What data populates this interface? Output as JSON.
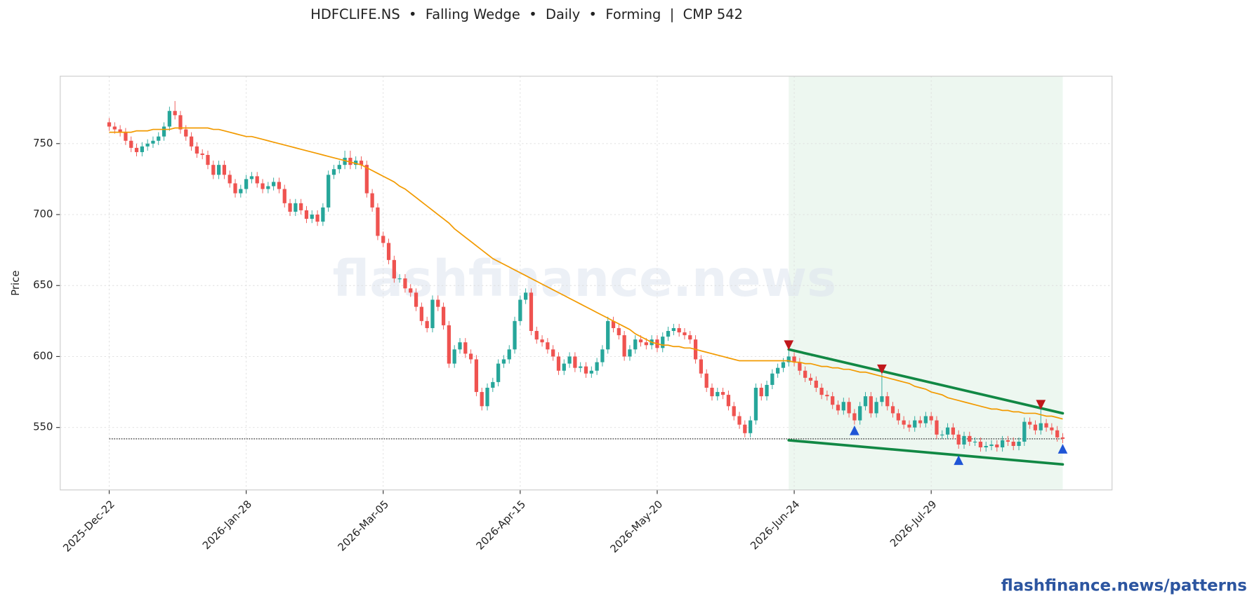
{
  "chart_data": {
    "type": "candlestick",
    "title": "HDFCLIFE.NS  •  Falling Wedge  •  Daily  •  Forming  |  CMP 542",
    "y_label": "Price",
    "watermark": "flashfinance.news",
    "footer": "flashfinance.news/patterns",
    "categories": [
      "2025-Dec-22",
      null,
      null,
      null,
      null,
      null,
      null,
      null,
      null,
      null,
      null,
      null,
      null,
      null,
      null,
      null,
      null,
      null,
      null,
      null,
      null,
      null,
      null,
      null,
      null,
      "2026-Jan-28",
      null,
      null,
      null,
      null,
      null,
      null,
      null,
      null,
      null,
      null,
      null,
      null,
      null,
      null,
      null,
      null,
      null,
      null,
      null,
      null,
      null,
      null,
      null,
      null,
      "2026-Mar-05",
      null,
      null,
      null,
      null,
      null,
      null,
      null,
      null,
      null,
      null,
      null,
      null,
      null,
      null,
      null,
      null,
      null,
      null,
      null,
      null,
      null,
      null,
      null,
      null,
      "2026-Apr-15",
      null,
      null,
      null,
      null,
      null,
      null,
      null,
      null,
      null,
      null,
      null,
      null,
      null,
      null,
      null,
      null,
      null,
      null,
      null,
      null,
      null,
      null,
      null,
      null,
      "2026-May-20",
      null,
      null,
      null,
      null,
      null,
      null,
      null,
      null,
      null,
      null,
      null,
      null,
      null,
      null,
      null,
      null,
      null,
      null,
      null,
      null,
      null,
      null,
      null,
      null,
      "2026-Jun-24",
      null,
      null,
      null,
      null,
      null,
      null,
      null,
      null,
      null,
      null,
      null,
      null,
      null,
      null,
      null,
      null,
      null,
      null,
      null,
      null,
      null,
      null,
      null,
      null,
      "2026-Jul-29",
      null,
      null,
      null,
      null,
      null,
      null,
      null,
      null,
      null,
      null,
      null,
      null,
      null,
      null,
      null,
      null,
      null,
      null,
      null,
      null,
      null,
      null,
      null,
      null
    ],
    "open": [
      765,
      762,
      760,
      758,
      752,
      747,
      744,
      748,
      750,
      752,
      755,
      762,
      773,
      770,
      760,
      755,
      748,
      743,
      742,
      735,
      728,
      735,
      728,
      722,
      715,
      718,
      725,
      727,
      722,
      718,
      720,
      723,
      718,
      708,
      702,
      708,
      703,
      697,
      700,
      695,
      705,
      728,
      732,
      735,
      740,
      735,
      738,
      735,
      715,
      705,
      685,
      680,
      668,
      655,
      655,
      648,
      645,
      635,
      625,
      620,
      640,
      635,
      622,
      595,
      605,
      610,
      602,
      598,
      575,
      565,
      578,
      582,
      595,
      598,
      605,
      625,
      640,
      645,
      618,
      612,
      610,
      605,
      600,
      590,
      595,
      600,
      592,
      593,
      588,
      590,
      596,
      605,
      625,
      620,
      615,
      600,
      605,
      612,
      610,
      608,
      612,
      606,
      614,
      618,
      620,
      617,
      615,
      612,
      598,
      588,
      578,
      572,
      575,
      573,
      565,
      558,
      552,
      546,
      555,
      578,
      572,
      580,
      588,
      592,
      596,
      600,
      596,
      590,
      585,
      583,
      578,
      573,
      572,
      566,
      562,
      568,
      560,
      555,
      565,
      572,
      560,
      568,
      572,
      565,
      560,
      555,
      552,
      550,
      555,
      553,
      558,
      555,
      545,
      545,
      550,
      545,
      538,
      544,
      540,
      540,
      536,
      537,
      538,
      536,
      541,
      540,
      537,
      540,
      554,
      552,
      548,
      553,
      550,
      548,
      543
    ],
    "high": [
      768,
      765,
      763,
      761,
      755,
      750,
      751,
      753,
      755,
      758,
      765,
      776,
      780,
      773,
      763,
      758,
      751,
      746,
      745,
      738,
      738,
      738,
      731,
      725,
      721,
      728,
      730,
      730,
      725,
      723,
      726,
      726,
      721,
      711,
      711,
      711,
      706,
      703,
      703,
      708,
      731,
      735,
      738,
      745,
      745,
      741,
      741,
      738,
      718,
      708,
      688,
      683,
      671,
      658,
      658,
      651,
      648,
      638,
      628,
      643,
      643,
      638,
      625,
      608,
      613,
      613,
      605,
      601,
      578,
      581,
      585,
      598,
      601,
      608,
      628,
      643,
      648,
      648,
      621,
      615,
      613,
      608,
      603,
      598,
      603,
      603,
      596,
      596,
      593,
      599,
      608,
      628,
      628,
      623,
      618,
      608,
      615,
      615,
      613,
      615,
      615,
      617,
      621,
      623,
      623,
      620,
      618,
      615,
      601,
      591,
      581,
      578,
      578,
      576,
      568,
      561,
      555,
      558,
      581,
      581,
      583,
      591,
      595,
      599,
      604,
      603,
      599,
      593,
      588,
      586,
      581,
      576,
      575,
      569,
      571,
      571,
      563,
      568,
      575,
      575,
      571,
      588,
      575,
      568,
      563,
      558,
      555,
      558,
      558,
      561,
      561,
      558,
      548,
      553,
      553,
      548,
      547,
      547,
      543,
      543,
      540,
      541,
      541,
      544,
      544,
      543,
      543,
      557,
      557,
      555,
      563,
      556,
      553,
      551,
      546
    ],
    "low": [
      759,
      757,
      755,
      749,
      744,
      741,
      741,
      745,
      747,
      749,
      752,
      759,
      767,
      757,
      752,
      745,
      740,
      739,
      732,
      725,
      725,
      725,
      719,
      712,
      712,
      715,
      722,
      719,
      715,
      715,
      717,
      715,
      705,
      699,
      699,
      700,
      694,
      694,
      692,
      692,
      702,
      725,
      729,
      732,
      732,
      732,
      732,
      712,
      702,
      682,
      677,
      665,
      652,
      652,
      645,
      642,
      632,
      622,
      617,
      617,
      632,
      619,
      592,
      592,
      602,
      599,
      595,
      572,
      562,
      562,
      575,
      579,
      592,
      595,
      602,
      622,
      637,
      615,
      609,
      607,
      602,
      597,
      587,
      587,
      592,
      589,
      589,
      585,
      585,
      587,
      593,
      602,
      617,
      612,
      597,
      597,
      602,
      607,
      605,
      605,
      603,
      603,
      611,
      615,
      614,
      612,
      609,
      595,
      585,
      575,
      569,
      569,
      570,
      562,
      555,
      549,
      543,
      543,
      552,
      569,
      569,
      577,
      585,
      589,
      593,
      593,
      587,
      582,
      580,
      575,
      570,
      569,
      563,
      559,
      559,
      557,
      552,
      552,
      562,
      557,
      557,
      565,
      562,
      557,
      552,
      549,
      547,
      547,
      550,
      550,
      552,
      542,
      542,
      542,
      542,
      535,
      535,
      537,
      537,
      533,
      533,
      534,
      533,
      533,
      537,
      534,
      534,
      537,
      549,
      545,
      545,
      547,
      545,
      540,
      539
    ],
    "close": [
      762,
      760,
      758,
      752,
      747,
      744,
      748,
      750,
      752,
      755,
      762,
      773,
      770,
      760,
      755,
      748,
      743,
      742,
      735,
      728,
      735,
      728,
      722,
      715,
      718,
      725,
      727,
      722,
      718,
      720,
      723,
      718,
      708,
      702,
      708,
      703,
      697,
      700,
      695,
      705,
      728,
      732,
      735,
      740,
      735,
      738,
      735,
      715,
      705,
      685,
      680,
      668,
      655,
      655,
      648,
      645,
      635,
      625,
      620,
      640,
      635,
      622,
      595,
      605,
      610,
      602,
      598,
      575,
      565,
      578,
      582,
      595,
      598,
      605,
      625,
      640,
      645,
      618,
      612,
      610,
      605,
      600,
      590,
      595,
      600,
      592,
      593,
      588,
      590,
      596,
      605,
      625,
      620,
      615,
      600,
      605,
      612,
      610,
      608,
      612,
      606,
      614,
      618,
      620,
      617,
      615,
      612,
      598,
      588,
      578,
      572,
      575,
      573,
      565,
      558,
      552,
      546,
      555,
      578,
      572,
      580,
      588,
      592,
      596,
      600,
      596,
      590,
      585,
      583,
      578,
      573,
      572,
      566,
      562,
      568,
      560,
      555,
      565,
      572,
      560,
      568,
      572,
      565,
      560,
      555,
      552,
      550,
      555,
      553,
      558,
      555,
      545,
      545,
      550,
      545,
      538,
      544,
      540,
      540,
      536,
      537,
      538,
      536,
      541,
      540,
      537,
      540,
      554,
      552,
      548,
      553,
      550,
      548,
      543,
      542
    ],
    "moving_average": {
      "color": "#f29a00",
      "values": [
        758,
        758,
        758,
        758,
        758,
        759,
        759,
        759,
        760,
        760,
        760,
        760,
        761,
        761,
        761,
        761,
        761,
        761,
        761,
        760,
        760,
        759,
        758,
        757,
        756,
        755,
        755,
        754,
        753,
        752,
        751,
        750,
        749,
        748,
        747,
        746,
        745,
        744,
        743,
        742,
        741,
        740,
        739,
        738,
        737,
        736,
        735,
        733,
        731,
        729,
        727,
        725,
        723,
        720,
        718,
        715,
        712,
        709,
        706,
        703,
        700,
        697,
        694,
        690,
        687,
        684,
        681,
        678,
        675,
        672,
        669,
        667,
        665,
        663,
        661,
        659,
        657,
        655,
        653,
        651,
        649,
        647,
        645,
        643,
        641,
        639,
        637,
        635,
        633,
        631,
        629,
        627,
        625,
        623,
        621,
        619,
        616,
        614,
        612,
        610,
        609,
        608,
        608,
        607,
        607,
        606,
        606,
        605,
        604,
        603,
        602,
        601,
        600,
        599,
        598,
        597,
        597,
        597,
        597,
        597,
        597,
        597,
        597,
        597,
        597,
        596,
        596,
        595,
        595,
        594,
        593,
        593,
        592,
        592,
        591,
        591,
        590,
        589,
        589,
        588,
        587,
        586,
        585,
        584,
        583,
        582,
        581,
        579,
        578,
        577,
        575,
        574,
        573,
        571,
        570,
        569,
        568,
        567,
        566,
        565,
        564,
        563,
        563,
        562,
        562,
        561,
        561,
        560,
        560,
        560,
        559,
        558,
        558,
        557,
        556
      ]
    },
    "up_color": "#26a69a",
    "down_color": "#ef5350",
    "wedge_x": [
      124,
      174
    ],
    "wedge_upper": [
      605,
      560
    ],
    "wedge_lower": [
      541,
      524
    ],
    "wedge_color": "#118844",
    "peaks": {
      "index": [
        124,
        141,
        170
      ],
      "values": [
        608,
        591,
        566
      ],
      "color": "#c0171b"
    },
    "troughs": {
      "index": [
        136,
        155,
        174
      ],
      "values": [
        548,
        527,
        535
      ],
      "color": "#1f55d6"
    },
    "cmp_line": 542,
    "ylim": [
      506,
      797.5
    ],
    "yticks": [
      550,
      600,
      650,
      700,
      750
    ],
    "grid": true
  }
}
